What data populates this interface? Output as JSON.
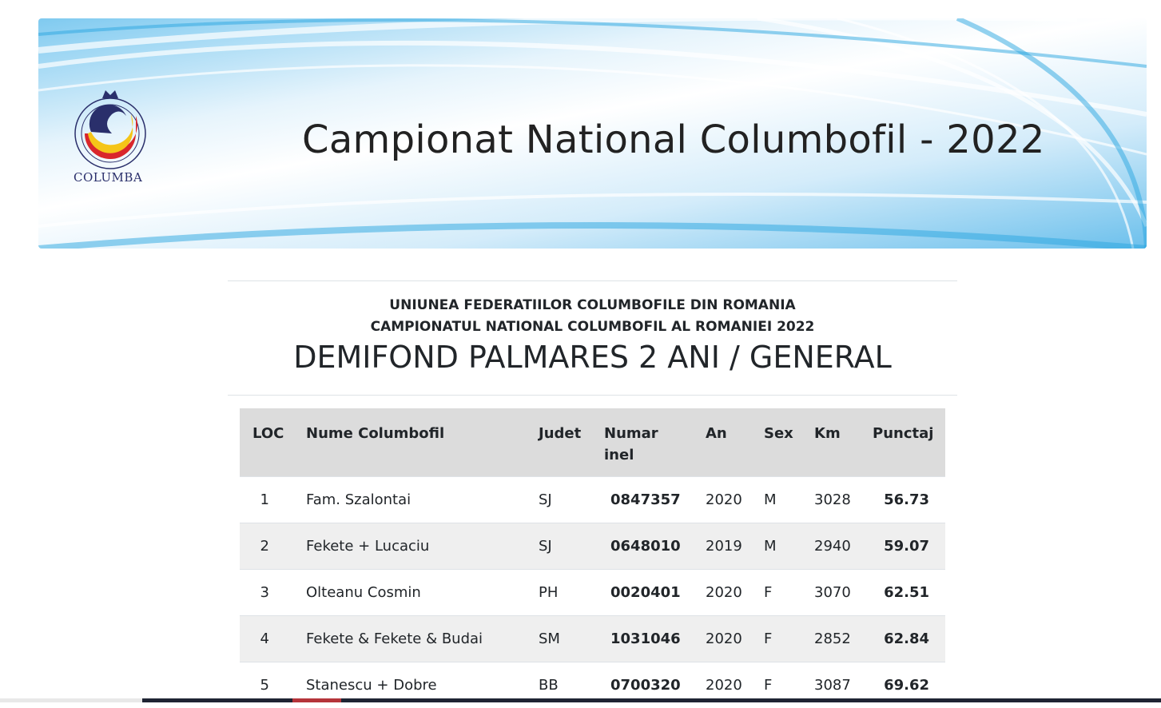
{
  "banner": {
    "title": "Campionat National Columbofil - 2022",
    "logo_text": "COLUMBA"
  },
  "heading": {
    "line1": "UNIUNEA FEDERATIILOR COLUMBOFILE DIN ROMANIA",
    "line2": "CAMPIONATUL NATIONAL COLUMBOFIL AL ROMANIEI 2022",
    "title": "DEMIFOND PALMARES 2 ANI / GENERAL"
  },
  "table": {
    "headers": [
      "LOC",
      "Nume Columbofil",
      "Judet",
      "Numar inel",
      "An",
      "Sex",
      "Km",
      "Punctaj"
    ],
    "rows": [
      [
        "1",
        "Fam. Szalontai",
        "SJ",
        "0847357",
        "2020",
        "M",
        "3028",
        "56.73"
      ],
      [
        "2",
        "Fekete + Lucaciu",
        "SJ",
        "0648010",
        "2019",
        "M",
        "2940",
        "59.07"
      ],
      [
        "3",
        "Olteanu Cosmin",
        "PH",
        "0020401",
        "2020",
        "F",
        "3070",
        "62.51"
      ],
      [
        "4",
        "Fekete & Fekete & Budai",
        "SM",
        "1031046",
        "2020",
        "F",
        "2852",
        "62.84"
      ],
      [
        "5",
        "Stanescu + Dobre",
        "BB",
        "0700320",
        "2020",
        "F",
        "3087",
        "69.62"
      ]
    ]
  }
}
